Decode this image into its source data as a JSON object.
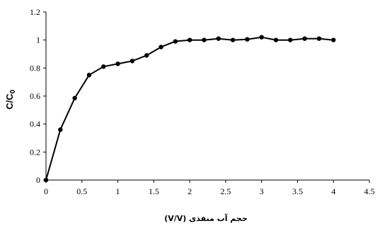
{
  "chart_data": {
    "type": "line",
    "xlabel": "حجم آب منفذی (V/V)",
    "ylabel": "C/C",
    "ylabel_subscript": "0",
    "xlim": [
      0,
      4.5
    ],
    "ylim": [
      0,
      1.2
    ],
    "x_ticks": [
      "0",
      "0.5",
      "1",
      "1.5",
      "2",
      "2.5",
      "3",
      "3.5",
      "4",
      "4.5"
    ],
    "y_ticks": [
      "0",
      "0.2",
      "0.4",
      "0.6",
      "0.8",
      "1",
      "1.2"
    ],
    "grid": false,
    "series": [
      {
        "color": "#000000",
        "marker": "circle",
        "x": [
          0,
          0.2,
          0.4,
          0.6,
          0.8,
          1.0,
          1.2,
          1.4,
          1.6,
          1.8,
          2.0,
          2.2,
          2.4,
          2.6,
          2.8,
          3.0,
          3.2,
          3.4,
          3.6,
          3.8,
          4.0
        ],
        "y": [
          0,
          0.36,
          0.585,
          0.75,
          0.81,
          0.83,
          0.85,
          0.89,
          0.95,
          0.99,
          1.0,
          1.0,
          1.01,
          1.0,
          1.005,
          1.02,
          1.0,
          1.0,
          1.01,
          1.01,
          1.0
        ]
      }
    ]
  }
}
